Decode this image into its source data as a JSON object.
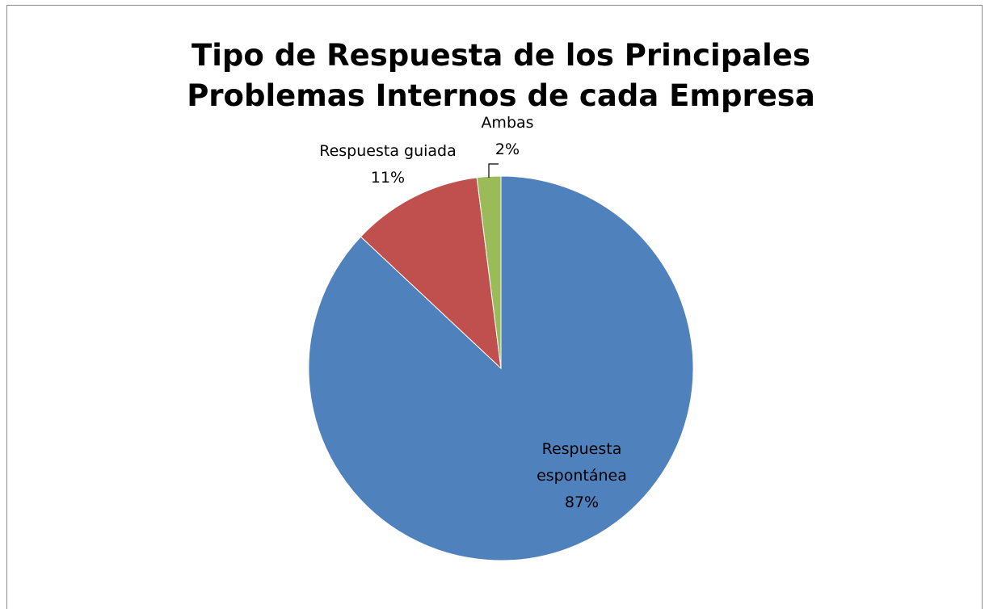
{
  "chart_data": {
    "type": "pie",
    "title": "Tipo de Respuesta de los Principales Problemas Internos de cada Empresa",
    "categories": [
      "Respuesta espontánea",
      "Respuesta guiada",
      "Ambas"
    ],
    "values": [
      87,
      11,
      2
    ],
    "value_labels": [
      "87%",
      "11%",
      "2%"
    ],
    "colors": [
      "#4f81bd",
      "#c0504d",
      "#9bbb59"
    ]
  }
}
